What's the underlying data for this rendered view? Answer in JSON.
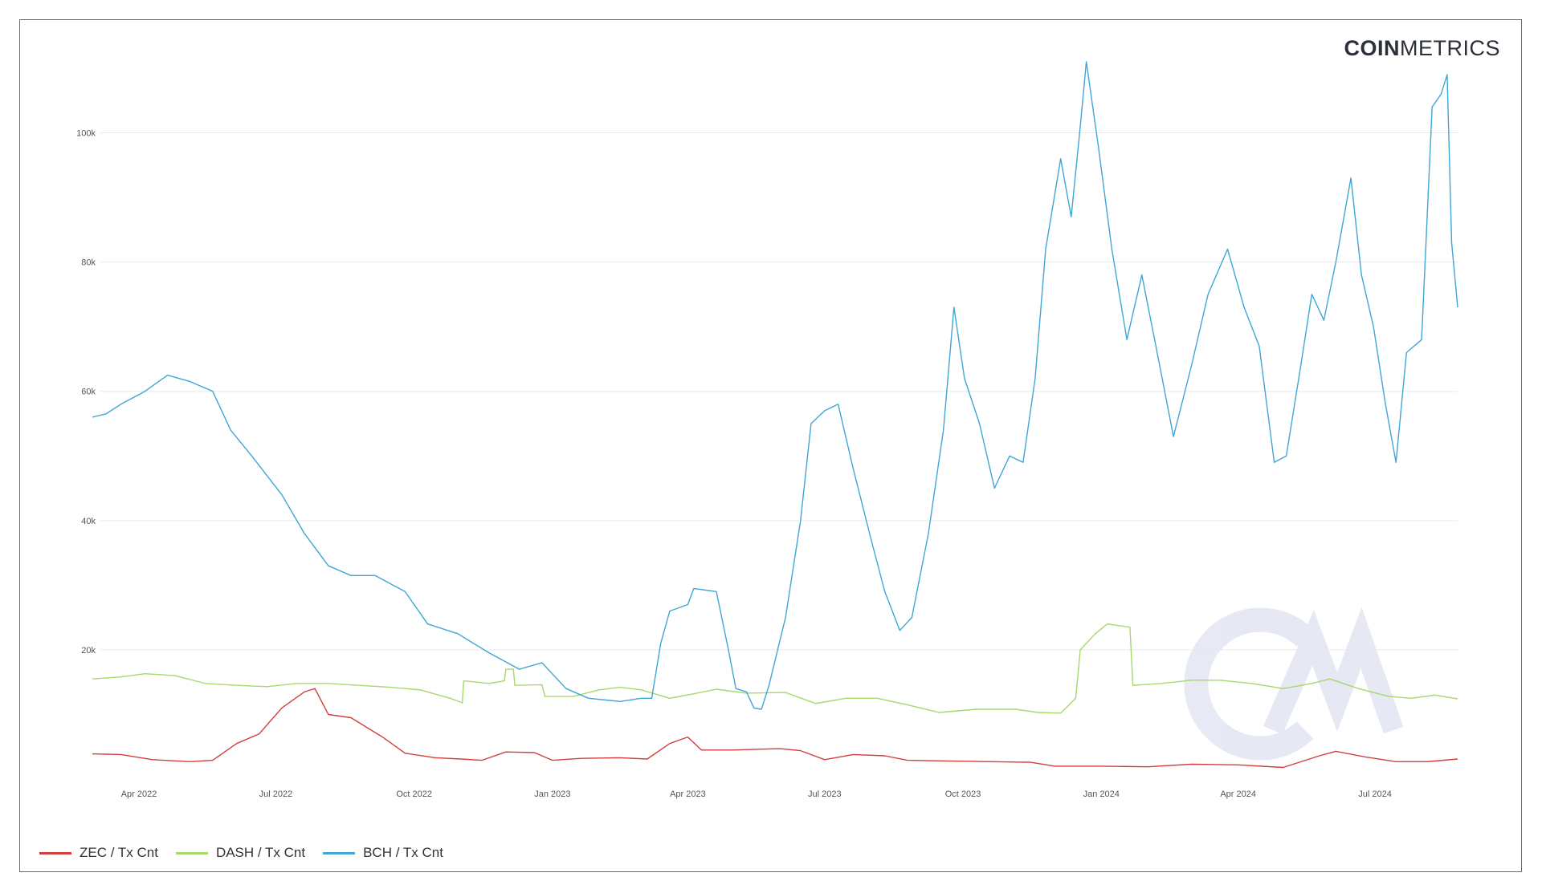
{
  "brand": {
    "bold": "COIN",
    "light": "METRICS"
  },
  "chart_data": {
    "type": "line",
    "ylim": [
      0,
      110000
    ],
    "xlim": [
      "2022-03-01",
      "2024-08-25"
    ],
    "grid": true,
    "legend_position": "bottom-left",
    "yticks": [
      {
        "value": 20000,
        "label": "20k"
      },
      {
        "value": 40000,
        "label": "40k"
      },
      {
        "value": 60000,
        "label": "60k"
      },
      {
        "value": 80000,
        "label": "80k"
      },
      {
        "value": 100000,
        "label": "100k"
      }
    ],
    "xticks": [
      {
        "date": "2022-04-01",
        "label": "Apr 2022"
      },
      {
        "date": "2022-07-01",
        "label": "Jul 2022"
      },
      {
        "date": "2022-10-01",
        "label": "Oct 2022"
      },
      {
        "date": "2023-01-01",
        "label": "Jan 2023"
      },
      {
        "date": "2023-04-01",
        "label": "Apr 2023"
      },
      {
        "date": "2023-07-01",
        "label": "Jul 2023"
      },
      {
        "date": "2023-10-01",
        "label": "Oct 2023"
      },
      {
        "date": "2024-01-01",
        "label": "Jan 2024"
      },
      {
        "date": "2024-04-01",
        "label": "Apr 2024"
      },
      {
        "date": "2024-07-01",
        "label": "Jul 2024"
      }
    ],
    "series": [
      {
        "name": "ZEC / Tx Cnt",
        "color": "#d23f3f",
        "points": [
          [
            "2022-03-01",
            3900
          ],
          [
            "2022-03-20",
            3800
          ],
          [
            "2022-04-10",
            3000
          ],
          [
            "2022-05-05",
            2700
          ],
          [
            "2022-05-20",
            2900
          ],
          [
            "2022-06-05",
            5500
          ],
          [
            "2022-06-20",
            7000
          ],
          [
            "2022-07-05",
            11000
          ],
          [
            "2022-07-20",
            13500
          ],
          [
            "2022-07-27",
            14000
          ],
          [
            "2022-08-05",
            10000
          ],
          [
            "2022-08-20",
            9500
          ],
          [
            "2022-09-10",
            6500
          ],
          [
            "2022-09-25",
            4000
          ],
          [
            "2022-10-15",
            3300
          ],
          [
            "2022-11-01",
            3100
          ],
          [
            "2022-11-15",
            2900
          ],
          [
            "2022-12-01",
            4200
          ],
          [
            "2022-12-20",
            4100
          ],
          [
            "2023-01-01",
            2900
          ],
          [
            "2023-01-20",
            3200
          ],
          [
            "2023-02-15",
            3300
          ],
          [
            "2023-03-05",
            3100
          ],
          [
            "2023-03-20",
            5500
          ],
          [
            "2023-04-01",
            6500
          ],
          [
            "2023-04-10",
            4500
          ],
          [
            "2023-05-01",
            4500
          ],
          [
            "2023-06-01",
            4700
          ],
          [
            "2023-06-15",
            4400
          ],
          [
            "2023-07-01",
            3000
          ],
          [
            "2023-07-20",
            3800
          ],
          [
            "2023-08-10",
            3600
          ],
          [
            "2023-08-25",
            2900
          ],
          [
            "2023-09-20",
            2800
          ],
          [
            "2023-10-20",
            2700
          ],
          [
            "2023-11-15",
            2600
          ],
          [
            "2023-12-01",
            2000
          ],
          [
            "2024-01-01",
            2000
          ],
          [
            "2024-02-01",
            1900
          ],
          [
            "2024-03-01",
            2300
          ],
          [
            "2024-04-01",
            2200
          ],
          [
            "2024-05-01",
            1800
          ],
          [
            "2024-05-25",
            3600
          ],
          [
            "2024-06-05",
            4300
          ],
          [
            "2024-06-25",
            3400
          ],
          [
            "2024-07-15",
            2700
          ],
          [
            "2024-08-05",
            2700
          ],
          [
            "2024-08-25",
            3100
          ]
        ]
      },
      {
        "name": "DASH / Tx Cnt",
        "color": "#a8d76a",
        "points": [
          [
            "2022-03-01",
            15500
          ],
          [
            "2022-03-20",
            15800
          ],
          [
            "2022-04-05",
            16300
          ],
          [
            "2022-04-25",
            16000
          ],
          [
            "2022-05-15",
            14800
          ],
          [
            "2022-06-05",
            14500
          ],
          [
            "2022-06-25",
            14300
          ],
          [
            "2022-07-15",
            14800
          ],
          [
            "2022-08-05",
            14800
          ],
          [
            "2022-08-25",
            14500
          ],
          [
            "2022-09-15",
            14200
          ],
          [
            "2022-10-05",
            13800
          ],
          [
            "2022-10-25",
            12500
          ],
          [
            "2022-11-02",
            11800
          ],
          [
            "2022-11-03",
            15200
          ],
          [
            "2022-11-20",
            14800
          ],
          [
            "2022-11-30",
            15200
          ],
          [
            "2022-12-01",
            17000
          ],
          [
            "2022-12-06",
            17000
          ],
          [
            "2022-12-07",
            14500
          ],
          [
            "2022-12-25",
            14600
          ],
          [
            "2022-12-27",
            12800
          ],
          [
            "2023-01-15",
            12800
          ],
          [
            "2023-02-01",
            13800
          ],
          [
            "2023-02-15",
            14200
          ],
          [
            "2023-03-01",
            13800
          ],
          [
            "2023-03-20",
            12500
          ],
          [
            "2023-04-05",
            13200
          ],
          [
            "2023-04-20",
            13900
          ],
          [
            "2023-05-10",
            13300
          ],
          [
            "2023-06-05",
            13400
          ],
          [
            "2023-06-25",
            11700
          ],
          [
            "2023-07-15",
            12500
          ],
          [
            "2023-08-05",
            12500
          ],
          [
            "2023-08-25",
            11500
          ],
          [
            "2023-09-15",
            10300
          ],
          [
            "2023-10-10",
            10800
          ],
          [
            "2023-11-05",
            10800
          ],
          [
            "2023-11-20",
            10300
          ],
          [
            "2023-12-05",
            10200
          ],
          [
            "2023-12-15",
            12500
          ],
          [
            "2023-12-18",
            20000
          ],
          [
            "2023-12-28",
            22500
          ],
          [
            "2024-01-05",
            24000
          ],
          [
            "2024-01-20",
            23500
          ],
          [
            "2024-01-22",
            14500
          ],
          [
            "2024-02-10",
            14800
          ],
          [
            "2024-03-01",
            15300
          ],
          [
            "2024-03-20",
            15300
          ],
          [
            "2024-04-10",
            14800
          ],
          [
            "2024-05-01",
            14000
          ],
          [
            "2024-05-20",
            14800
          ],
          [
            "2024-06-01",
            15500
          ],
          [
            "2024-06-20",
            14000
          ],
          [
            "2024-07-10",
            12800
          ],
          [
            "2024-07-25",
            12500
          ],
          [
            "2024-08-10",
            13000
          ],
          [
            "2024-08-25",
            12400
          ]
        ]
      },
      {
        "name": "BCH / Tx Cnt",
        "color": "#3fa6d6",
        "points": [
          [
            "2022-03-01",
            56000
          ],
          [
            "2022-03-10",
            56500
          ],
          [
            "2022-03-20",
            58000
          ],
          [
            "2022-04-05",
            60000
          ],
          [
            "2022-04-20",
            62500
          ],
          [
            "2022-05-05",
            61500
          ],
          [
            "2022-05-20",
            60000
          ],
          [
            "2022-06-01",
            54000
          ],
          [
            "2022-06-15",
            50000
          ],
          [
            "2022-06-25",
            47000
          ],
          [
            "2022-07-05",
            44000
          ],
          [
            "2022-07-20",
            38000
          ],
          [
            "2022-08-05",
            33000
          ],
          [
            "2022-08-20",
            31500
          ],
          [
            "2022-09-05",
            31500
          ],
          [
            "2022-09-25",
            29000
          ],
          [
            "2022-10-10",
            24000
          ],
          [
            "2022-10-30",
            22500
          ],
          [
            "2022-11-20",
            19500
          ],
          [
            "2022-12-10",
            17000
          ],
          [
            "2022-12-25",
            18000
          ],
          [
            "2023-01-10",
            14000
          ],
          [
            "2023-01-25",
            12500
          ],
          [
            "2023-02-15",
            12000
          ],
          [
            "2023-03-01",
            12500
          ],
          [
            "2023-03-08",
            12500
          ],
          [
            "2023-03-14",
            21000
          ],
          [
            "2023-03-20",
            26000
          ],
          [
            "2023-04-01",
            27000
          ],
          [
            "2023-04-05",
            29500
          ],
          [
            "2023-04-20",
            29000
          ],
          [
            "2023-04-28",
            20000
          ],
          [
            "2023-05-03",
            14000
          ],
          [
            "2023-05-10",
            13500
          ],
          [
            "2023-05-15",
            11000
          ],
          [
            "2023-05-20",
            10800
          ],
          [
            "2023-05-25",
            14500
          ],
          [
            "2023-06-05",
            25000
          ],
          [
            "2023-06-15",
            40000
          ],
          [
            "2023-06-22",
            55000
          ],
          [
            "2023-07-01",
            57000
          ],
          [
            "2023-07-10",
            58000
          ],
          [
            "2023-07-20",
            48000
          ],
          [
            "2023-08-01",
            37000
          ],
          [
            "2023-08-10",
            29000
          ],
          [
            "2023-08-20",
            23000
          ],
          [
            "2023-08-28",
            25000
          ],
          [
            "2023-09-08",
            38000
          ],
          [
            "2023-09-18",
            54000
          ],
          [
            "2023-09-25",
            73000
          ],
          [
            "2023-10-02",
            62000
          ],
          [
            "2023-10-12",
            55000
          ],
          [
            "2023-10-22",
            45000
          ],
          [
            "2023-11-01",
            50000
          ],
          [
            "2023-11-10",
            49000
          ],
          [
            "2023-11-18",
            62000
          ],
          [
            "2023-11-25",
            82000
          ],
          [
            "2023-12-05",
            96000
          ],
          [
            "2023-12-12",
            87000
          ],
          [
            "2023-12-18",
            101000
          ],
          [
            "2023-12-22",
            111000
          ],
          [
            "2023-12-30",
            98000
          ],
          [
            "2024-01-08",
            82000
          ],
          [
            "2024-01-18",
            68000
          ],
          [
            "2024-01-28",
            78000
          ],
          [
            "2024-02-08",
            65000
          ],
          [
            "2024-02-18",
            53000
          ],
          [
            "2024-03-01",
            64000
          ],
          [
            "2024-03-12",
            75000
          ],
          [
            "2024-03-25",
            82000
          ],
          [
            "2024-04-05",
            73000
          ],
          [
            "2024-04-15",
            67000
          ],
          [
            "2024-04-25",
            49000
          ],
          [
            "2024-05-03",
            50000
          ],
          [
            "2024-05-12",
            63000
          ],
          [
            "2024-05-20",
            75000
          ],
          [
            "2024-05-28",
            71000
          ],
          [
            "2024-06-05",
            80000
          ],
          [
            "2024-06-15",
            93000
          ],
          [
            "2024-06-22",
            78000
          ],
          [
            "2024-06-30",
            70000
          ],
          [
            "2024-07-08",
            58000
          ],
          [
            "2024-07-15",
            49000
          ],
          [
            "2024-07-22",
            66000
          ],
          [
            "2024-08-01",
            68000
          ],
          [
            "2024-08-08",
            104000
          ],
          [
            "2024-08-14",
            106000
          ],
          [
            "2024-08-18",
            109000
          ],
          [
            "2024-08-21",
            83000
          ],
          [
            "2024-08-25",
            73000
          ]
        ]
      }
    ]
  }
}
